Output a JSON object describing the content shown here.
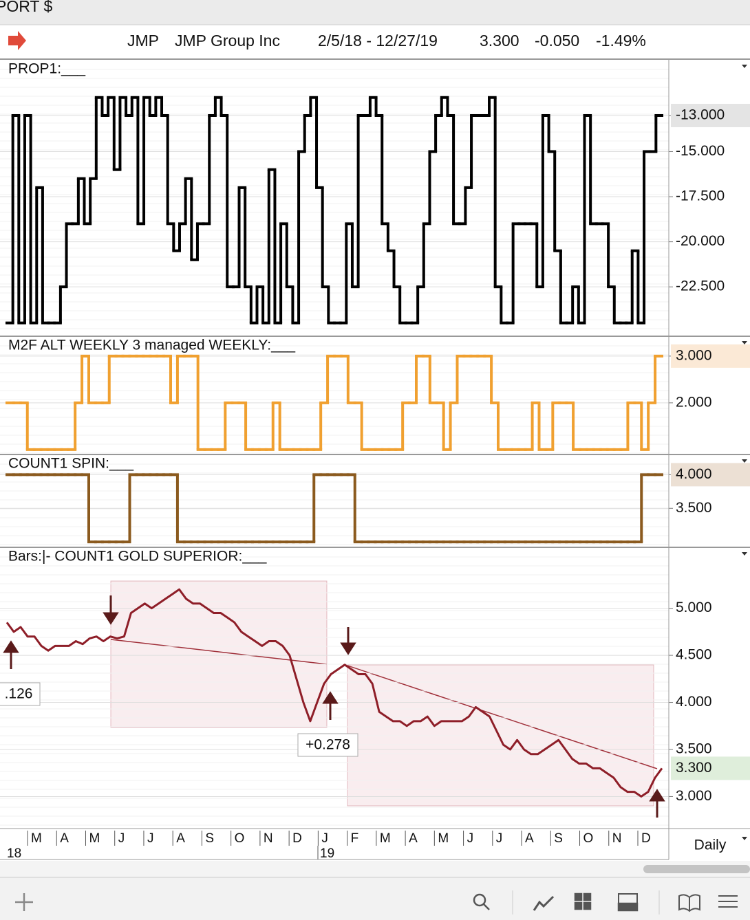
{
  "window_title": "PORT $",
  "header": {
    "symbol": "JMP",
    "name": "JMP Group Inc",
    "range": "2/5/18 - 12/27/19",
    "price": "3.300",
    "change": "-0.050",
    "change_pct": "-1.49%"
  },
  "panels": [
    {
      "title": "PROP1:___",
      "type": "step",
      "color": "#000000",
      "highlight_color": "#e4e4e4",
      "ylim": [
        -25.2,
        -9.95
      ],
      "yticks": [
        {
          "value": -13,
          "label": "-13.000"
        },
        {
          "value": -15,
          "label": "-15.000"
        },
        {
          "value": -17.5,
          "label": "-17.500"
        },
        {
          "value": -20,
          "label": "-20.000"
        },
        {
          "value": -22.5,
          "label": "-22.500"
        }
      ],
      "values": [
        -24.5,
        -13,
        -24.5,
        -13,
        -24.5,
        -17,
        -24.5,
        -24.5,
        -24.5,
        -22.5,
        -19,
        -19,
        -16.5,
        -19,
        -16.5,
        -12,
        -13,
        -12,
        -16,
        -12,
        -13,
        -12,
        -19,
        -12,
        -13,
        -12,
        -13,
        -19,
        -20.5,
        -19,
        -16.5,
        -21,
        -19,
        -19,
        -13,
        -12,
        -13,
        -22.5,
        -22.5,
        -17,
        -22.5,
        -24.5,
        -22.5,
        -24.5,
        -16,
        -24.5,
        -19,
        -22.5,
        -24.5,
        -15,
        -13,
        -12,
        -17,
        -22.5,
        -24.5,
        -24.5,
        -24.5,
        -19,
        -22.5,
        -13,
        -13,
        -12,
        -13,
        -19,
        -20.5,
        -22.5,
        -24.5,
        -24.5,
        -24.5,
        -22.5,
        -19,
        -15,
        -13,
        -12,
        -13,
        -19,
        -19,
        -17,
        -13,
        -13,
        -13,
        -12,
        -22.5,
        -24.5,
        -24.5,
        -19,
        -19,
        -19,
        -19,
        -22.5,
        -13,
        -15,
        -20.5,
        -24.5,
        -24.5,
        -22.5,
        -24.5,
        -13,
        -19,
        -19,
        -19,
        -22.5,
        -24.5,
        -24.5,
        -24.5,
        -20.5,
        -24.5,
        -15,
        -15,
        -13
      ]
    },
    {
      "title": "M2F ALT WEEKLY 3 managed WEEKLY:___",
      "type": "step",
      "color": "#f0a030",
      "highlight_color": "#fbe9d6",
      "ylim": [
        0.91,
        3.41
      ],
      "yticks": [
        {
          "value": 3,
          "label": "3.000"
        },
        {
          "value": 2,
          "label": "2.000"
        }
      ],
      "values": [
        2,
        2,
        2,
        1,
        1,
        1,
        1,
        1,
        1,
        1,
        2,
        3,
        2,
        2,
        2,
        3,
        3,
        3,
        3,
        3,
        3,
        3,
        3,
        3,
        2,
        3,
        3,
        3,
        1,
        1,
        1,
        1,
        2,
        2,
        2,
        1,
        1,
        1,
        1,
        2,
        1,
        1,
        1,
        1,
        1,
        1,
        2,
        3,
        3,
        3,
        2,
        2,
        1,
        1,
        1,
        1,
        1,
        1,
        2,
        2,
        3,
        3,
        2,
        2,
        1,
        2,
        3,
        3,
        3,
        3,
        3,
        2,
        1,
        1,
        1,
        1,
        1,
        2,
        1,
        1,
        2,
        2,
        2,
        1,
        1,
        1,
        1,
        1,
        1,
        1,
        1,
        2,
        2,
        1,
        2,
        3
      ]
    },
    {
      "title": "COUNT1 SPIN:___",
      "type": "step",
      "color": "#8b5a1e",
      "highlight_color": "#ece0d4",
      "ylim": [
        2.93,
        4.29
      ],
      "yticks": [
        {
          "value": 4,
          "label": "4.000"
        },
        {
          "value": 3.5,
          "label": "3.500"
        }
      ],
      "values": [
        4,
        4,
        4,
        4,
        4,
        4,
        4,
        4,
        4,
        4,
        4,
        4,
        3,
        3,
        3,
        3,
        3,
        3,
        4,
        4,
        4,
        4,
        4,
        4,
        4,
        3,
        3,
        3,
        3,
        3,
        3,
        3,
        3,
        3,
        3,
        3,
        3,
        3,
        3,
        3,
        3,
        3,
        3,
        3,
        3,
        4,
        4,
        4,
        4,
        4,
        4,
        3,
        3,
        3,
        3,
        3,
        3,
        3,
        3,
        3,
        3,
        3,
        3,
        3,
        3,
        3,
        3,
        3,
        3,
        3,
        3,
        3,
        3,
        3,
        3,
        3,
        3,
        3,
        3,
        3,
        3,
        3,
        3,
        3,
        3,
        3,
        3,
        3,
        3,
        3,
        3,
        3,
        3,
        4,
        4,
        4
      ]
    },
    {
      "title": "Bars:|-   COUNT1 GOLD SUPERIOR:___",
      "type": "line",
      "color": "#8e1e28",
      "highlight_color": "#dfeedb",
      "ylim": [
        2.66,
        5.64
      ],
      "yticks": [
        {
          "value": 5,
          "label": "5.000"
        },
        {
          "value": 4.5,
          "label": "4.500"
        },
        {
          "value": 4,
          "label": "4.000"
        },
        {
          "value": 3.5,
          "label": "3.500"
        },
        {
          "value": 3,
          "label": "3.000"
        }
      ],
      "values": [
        4.85,
        4.75,
        4.8,
        4.7,
        4.7,
        4.6,
        4.55,
        4.6,
        4.6,
        4.6,
        4.65,
        4.62,
        4.68,
        4.7,
        4.65,
        4.7,
        4.68,
        4.7,
        4.95,
        5.0,
        5.05,
        5.0,
        5.05,
        5.1,
        5.15,
        5.2,
        5.1,
        5.05,
        5.05,
        5.0,
        4.95,
        4.95,
        4.9,
        4.85,
        4.75,
        4.7,
        4.65,
        4.6,
        4.65,
        4.65,
        4.6,
        4.5,
        4.25,
        4.0,
        3.8,
        4.0,
        4.2,
        4.3,
        4.35,
        4.4,
        4.35,
        4.3,
        4.3,
        4.2,
        3.9,
        3.85,
        3.8,
        3.8,
        3.75,
        3.8,
        3.8,
        3.85,
        3.75,
        3.8,
        3.8,
        3.8,
        3.8,
        3.85,
        3.95,
        3.9,
        3.85,
        3.7,
        3.55,
        3.5,
        3.6,
        3.5,
        3.45,
        3.45,
        3.5,
        3.55,
        3.6,
        3.5,
        3.4,
        3.35,
        3.35,
        3.3,
        3.3,
        3.25,
        3.2,
        3.1,
        3.05,
        3.05,
        3.0,
        3.05,
        3.2,
        3.3
      ],
      "annotations": [
        ".126",
        "+0.278"
      ]
    }
  ],
  "x_axis": {
    "months": [
      "M",
      "A",
      "M",
      "J",
      "J",
      "A",
      "S",
      "O",
      "N",
      "D",
      "J",
      "F",
      "M",
      "A",
      "M",
      "J",
      "J",
      "A",
      "S",
      "O",
      "N",
      "D"
    ],
    "years": [
      "18",
      "19"
    ]
  },
  "interval": "Daily"
}
